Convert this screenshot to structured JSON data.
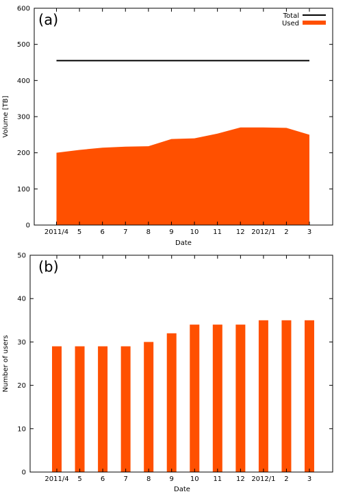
{
  "chart_data": [
    {
      "type": "area",
      "panel_label": "(a)",
      "xlabel": "Date",
      "ylabel": "Volume [TB]",
      "categories": [
        "2011/4",
        "5",
        "6",
        "7",
        "8",
        "9",
        "10",
        "11",
        "12",
        "2012/1",
        "2",
        "3"
      ],
      "ylim": [
        0,
        600
      ],
      "yticks": [
        0,
        100,
        200,
        300,
        400,
        500,
        600
      ],
      "grid": false,
      "legend_position": "top-right",
      "series": [
        {
          "name": "Total",
          "type": "line",
          "color": "#000000",
          "values": [
            455,
            455,
            455,
            455,
            455,
            455,
            455,
            455,
            455,
            455,
            455,
            455
          ]
        },
        {
          "name": "Used",
          "type": "area",
          "color": "#ff5000",
          "values": [
            200,
            208,
            214,
            217,
            218,
            238,
            240,
            253,
            270,
            270,
            269,
            250
          ]
        }
      ]
    },
    {
      "type": "bar",
      "panel_label": "(b)",
      "xlabel": "Date",
      "ylabel": "Number of users",
      "categories": [
        "2011/4",
        "5",
        "6",
        "7",
        "8",
        "9",
        "10",
        "11",
        "12",
        "2012/1",
        "2",
        "3"
      ],
      "values": [
        29,
        29,
        29,
        29,
        30,
        32,
        34,
        34,
        34,
        35,
        35,
        35
      ],
      "ylim": [
        0,
        50
      ],
      "yticks": [
        0,
        10,
        20,
        30,
        40,
        50
      ],
      "grid": false,
      "color": "#ff5000"
    }
  ]
}
